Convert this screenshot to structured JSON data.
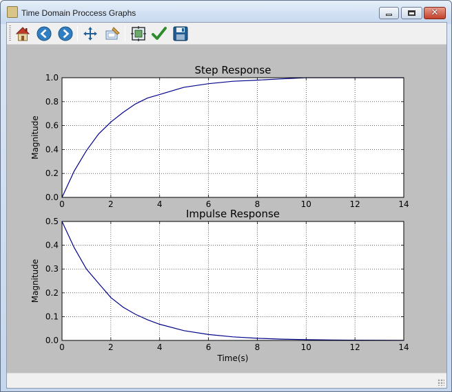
{
  "window": {
    "title": "Time Domain Proccess Graphs",
    "min_label": "",
    "max_label": "",
    "close_label": "✕"
  },
  "toolbar": {
    "items": [
      {
        "name": "home-icon",
        "label": ""
      },
      {
        "name": "back-icon",
        "label": ""
      },
      {
        "name": "forward-icon",
        "label": ""
      },
      {
        "name": "pan-icon",
        "label": ""
      },
      {
        "name": "zoom-icon",
        "label": ""
      },
      {
        "name": "subplots-icon",
        "label": ""
      },
      {
        "name": "edit-axis-icon",
        "label": ""
      },
      {
        "name": "save-icon",
        "label": ""
      }
    ]
  },
  "chart_data": [
    {
      "type": "line",
      "title": "Step Response",
      "xlabel": "",
      "ylabel": "Magnitude",
      "xlim": [
        0,
        14
      ],
      "ylim": [
        0,
        1.0
      ],
      "xticks": [
        "0",
        "2",
        "4",
        "6",
        "8",
        "10",
        "12",
        "14"
      ],
      "yticks": [
        "0.0",
        "0.2",
        "0.4",
        "0.6",
        "0.8",
        "1.0"
      ],
      "grid": true,
      "series": [
        {
          "color": "#00008b",
          "x": [
            0,
            0.5,
            1,
            1.5,
            2,
            2.5,
            3,
            3.5,
            4,
            5,
            6,
            7,
            8,
            9,
            10,
            11,
            12,
            13,
            14
          ],
          "y": [
            0,
            0.22,
            0.39,
            0.53,
            0.63,
            0.71,
            0.78,
            0.83,
            0.86,
            0.92,
            0.95,
            0.97,
            0.98,
            0.99,
            1.0,
            1.0,
            1.0,
            1.0,
            1.0
          ]
        }
      ]
    },
    {
      "type": "line",
      "title": "Impulse Response",
      "xlabel": "Time(s)",
      "ylabel": "Magnitude",
      "xlim": [
        0,
        14
      ],
      "ylim": [
        0,
        0.5
      ],
      "xticks": [
        "0",
        "2",
        "4",
        "6",
        "8",
        "10",
        "12",
        "14"
      ],
      "yticks": [
        "0.0",
        "0.1",
        "0.2",
        "0.3",
        "0.4",
        "0.5"
      ],
      "grid": true,
      "series": [
        {
          "color": "#00008b",
          "x": [
            0,
            0.5,
            1,
            1.5,
            2,
            2.5,
            3,
            3.5,
            4,
            5,
            6,
            7,
            8,
            9,
            10,
            11,
            12,
            13,
            14
          ],
          "y": [
            0.5,
            0.39,
            0.3,
            0.24,
            0.18,
            0.14,
            0.11,
            0.087,
            0.068,
            0.041,
            0.025,
            0.015,
            0.009,
            0.0056,
            0.0034,
            0.002,
            0.0012,
            0.0008,
            0.0005
          ]
        }
      ]
    }
  ],
  "statusbar": {
    "text": ""
  }
}
